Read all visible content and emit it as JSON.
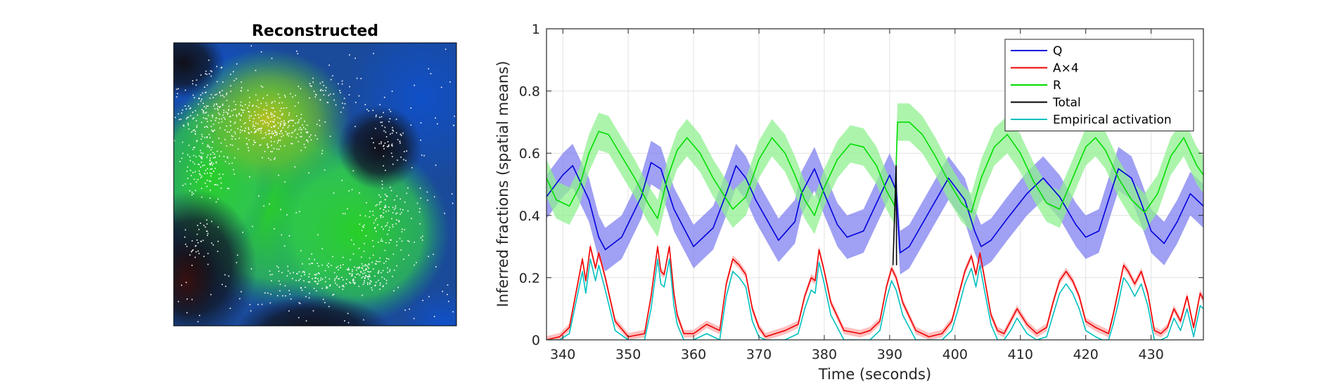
{
  "image_panel": {
    "title": "Reconstructed"
  },
  "chart_data": {
    "type": "line",
    "xlabel": "Time (seconds)",
    "ylabel": "Inferred fractions (spatial means)",
    "xlim": [
      337.5,
      438
    ],
    "ylim": [
      0,
      1
    ],
    "xticks": [
      340,
      350,
      360,
      370,
      380,
      390,
      400,
      410,
      420,
      430
    ],
    "yticks": [
      0,
      0.2,
      0.4,
      0.6,
      0.8,
      1
    ],
    "xtick_labels": [
      "340",
      "350",
      "360",
      "370",
      "380",
      "390",
      "400",
      "410",
      "420",
      "430"
    ],
    "ytick_labels": [
      "0",
      "0.2",
      "0.4",
      "0.6",
      "0.8",
      "1"
    ],
    "grid": true,
    "legend_position": "top-right",
    "series": [
      {
        "name": "Q",
        "color": "#0000dd",
        "band_color": "#8080f0",
        "band_halfwidth": 0.07,
        "x": [
          337.5,
          340,
          341.5,
          344,
          345.5,
          346.5,
          349,
          352,
          353.5,
          355,
          357,
          360,
          363,
          365,
          366.5,
          368,
          369.5,
          373,
          375.5,
          376.5,
          378.5,
          380,
          382,
          383.5,
          386,
          388,
          390,
          391,
          391.6,
          393,
          396,
          399,
          401.5,
          403,
          404,
          405.5,
          408,
          411,
          413.5,
          416,
          418.5,
          420,
          422,
          423.5,
          425,
          427,
          428.5,
          430,
          432,
          434,
          436,
          438
        ],
        "values": [
          0.46,
          0.53,
          0.56,
          0.45,
          0.33,
          0.29,
          0.33,
          0.46,
          0.57,
          0.55,
          0.42,
          0.3,
          0.36,
          0.47,
          0.56,
          0.52,
          0.45,
          0.32,
          0.38,
          0.47,
          0.55,
          0.47,
          0.37,
          0.33,
          0.35,
          0.44,
          0.53,
          0.48,
          0.28,
          0.3,
          0.41,
          0.52,
          0.45,
          0.35,
          0.3,
          0.32,
          0.39,
          0.47,
          0.52,
          0.46,
          0.37,
          0.33,
          0.35,
          0.45,
          0.55,
          0.52,
          0.44,
          0.35,
          0.31,
          0.38,
          0.47,
          0.43
        ]
      },
      {
        "name": "A×4",
        "color": "#ee0000",
        "band_color": "#ffaaaa",
        "band_halfwidth": 0.012,
        "x": [
          337.5,
          339.5,
          341,
          342,
          343,
          343.5,
          344.2,
          345,
          345.5,
          346.5,
          348,
          350,
          352.5,
          353.5,
          354.5,
          355,
          355.5,
          356.3,
          357,
          357.5,
          358.5,
          360,
          362,
          364,
          365,
          366,
          367,
          368,
          369,
          370,
          371,
          372.5,
          374,
          376,
          377,
          378,
          378.6,
          379.2,
          380,
          381,
          383,
          385.5,
          387,
          388.5,
          389.5,
          390.3,
          391,
          392,
          394,
          396,
          398,
          399.5,
          400.5,
          401.5,
          402.5,
          403.2,
          403.8,
          404.5,
          405.5,
          406.5,
          407.5,
          408.5,
          409.5,
          411,
          412.5,
          414,
          415,
          416,
          417,
          418,
          419,
          420,
          421.5,
          422.5,
          423.5,
          424.2,
          425,
          425.8,
          426.5,
          427.5,
          428.5,
          429.5,
          430.5,
          431.5,
          432.5,
          433.5,
          434.5,
          435.5,
          436.5,
          437.5,
          438
        ],
        "values": [
          0.0,
          0.01,
          0.04,
          0.15,
          0.26,
          0.19,
          0.3,
          0.23,
          0.28,
          0.2,
          0.06,
          0.01,
          0.02,
          0.14,
          0.3,
          0.22,
          0.21,
          0.3,
          0.15,
          0.08,
          0.02,
          0.02,
          0.05,
          0.03,
          0.18,
          0.26,
          0.24,
          0.21,
          0.1,
          0.04,
          0.01,
          0.02,
          0.03,
          0.05,
          0.14,
          0.2,
          0.19,
          0.29,
          0.22,
          0.12,
          0.03,
          0.02,
          0.03,
          0.06,
          0.17,
          0.23,
          0.2,
          0.12,
          0.03,
          0.01,
          0.02,
          0.06,
          0.14,
          0.22,
          0.27,
          0.21,
          0.28,
          0.2,
          0.08,
          0.03,
          0.02,
          0.06,
          0.1,
          0.05,
          0.02,
          0.04,
          0.12,
          0.19,
          0.22,
          0.19,
          0.14,
          0.06,
          0.04,
          0.03,
          0.02,
          0.08,
          0.16,
          0.24,
          0.22,
          0.18,
          0.22,
          0.15,
          0.03,
          0.02,
          0.04,
          0.1,
          0.06,
          0.14,
          0.04,
          0.15,
          0.13
        ],
        "band": true
      },
      {
        "name": "R",
        "color": "#00dd00",
        "band_color": "#90f090",
        "band_halfwidth": 0.06,
        "x": [
          337.5,
          339,
          341,
          342.5,
          344,
          345.5,
          347,
          349,
          351,
          353,
          354.5,
          356,
          357.5,
          359,
          361,
          363,
          364.5,
          366,
          368,
          370,
          372,
          374,
          375.5,
          377,
          378.5,
          380,
          382,
          384,
          386,
          388,
          389.5,
          390.8,
          391.2,
          393,
          395,
          397,
          399,
          401,
          402.5,
          404,
          406,
          408,
          410,
          412,
          414,
          416,
          418,
          420,
          421.5,
          423,
          425,
          427,
          429,
          431,
          433,
          435,
          437,
          438
        ],
        "values": [
          0.52,
          0.45,
          0.43,
          0.49,
          0.6,
          0.67,
          0.66,
          0.59,
          0.52,
          0.44,
          0.39,
          0.52,
          0.61,
          0.65,
          0.6,
          0.52,
          0.47,
          0.42,
          0.46,
          0.58,
          0.65,
          0.6,
          0.53,
          0.45,
          0.4,
          0.49,
          0.58,
          0.63,
          0.62,
          0.56,
          0.48,
          0.43,
          0.7,
          0.7,
          0.66,
          0.59,
          0.51,
          0.44,
          0.41,
          0.52,
          0.62,
          0.66,
          0.6,
          0.51,
          0.44,
          0.42,
          0.52,
          0.62,
          0.65,
          0.61,
          0.52,
          0.45,
          0.41,
          0.47,
          0.59,
          0.65,
          0.56,
          0.53
        ]
      },
      {
        "name": "Total",
        "color": "#000000",
        "x": [
          390.5,
          391,
          391.05
        ],
        "values": [
          0.24,
          0.56,
          0.24
        ]
      },
      {
        "name": "Empirical activation",
        "color": "#00c0c0",
        "x": [
          337.5,
          339.5,
          341,
          342,
          343,
          343.5,
          344.2,
          345,
          345.5,
          346.5,
          348,
          350,
          352.5,
          353.5,
          354.5,
          355,
          355.5,
          356.3,
          357,
          357.5,
          358.5,
          360,
          362,
          364,
          365,
          366,
          367,
          368,
          369,
          370,
          371,
          372.5,
          374,
          376,
          377,
          378,
          378.6,
          379.2,
          380,
          381,
          383,
          385.5,
          387,
          388.5,
          389.5,
          390.3,
          391,
          392,
          394,
          396,
          398,
          399.5,
          400.5,
          401.5,
          402.5,
          403.2,
          403.8,
          404.5,
          405.5,
          406.5,
          407.5,
          408.5,
          409.5,
          411,
          412.5,
          414,
          415,
          416,
          417,
          418,
          419,
          420,
          421.5,
          422.5,
          423.5,
          424.2,
          425,
          425.8,
          426.5,
          427.5,
          428.5,
          429.5,
          430.5,
          431.5,
          432.5,
          433.5,
          434.5,
          435.5,
          436.5,
          437.5,
          438
        ],
        "values": [
          0.0,
          0.0,
          0.02,
          0.12,
          0.22,
          0.15,
          0.26,
          0.19,
          0.24,
          0.16,
          0.03,
          0.0,
          0.0,
          0.1,
          0.26,
          0.18,
          0.17,
          0.26,
          0.11,
          0.05,
          0.0,
          0.0,
          0.02,
          0.0,
          0.14,
          0.22,
          0.2,
          0.17,
          0.06,
          0.01,
          0.0,
          0.0,
          0.0,
          0.02,
          0.1,
          0.16,
          0.15,
          0.25,
          0.18,
          0.08,
          0.0,
          0.0,
          0.0,
          0.03,
          0.13,
          0.19,
          0.16,
          0.08,
          0.0,
          0.0,
          0.0,
          0.03,
          0.1,
          0.18,
          0.23,
          0.17,
          0.24,
          0.16,
          0.05,
          0.0,
          0.0,
          0.03,
          0.07,
          0.02,
          0.0,
          0.01,
          0.08,
          0.15,
          0.18,
          0.15,
          0.1,
          0.03,
          0.01,
          0.0,
          0.0,
          0.05,
          0.12,
          0.2,
          0.18,
          0.14,
          0.18,
          0.11,
          0.0,
          0.0,
          0.01,
          0.07,
          0.03,
          0.1,
          0.01,
          0.11,
          0.1
        ]
      }
    ]
  }
}
